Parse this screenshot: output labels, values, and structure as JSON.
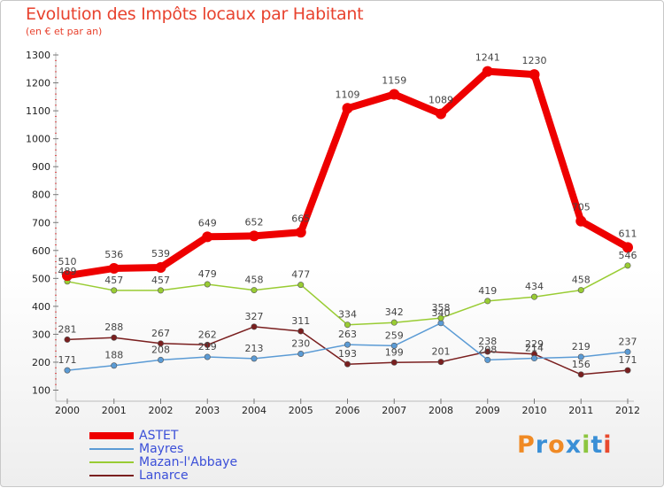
{
  "title": "Evolution des Impôts locaux par Habitant",
  "subtitle": "(en € et par an)",
  "logo": "Proxiti",
  "chart_data": {
    "type": "line",
    "title": "Evolution des Impôts locaux par Habitant",
    "subtitle": "(en € et par an)",
    "x": [
      "2000",
      "2001",
      "2002",
      "2003",
      "2004",
      "2005",
      "2006",
      "2007",
      "2008",
      "2009",
      "2010",
      "2011",
      "2012"
    ],
    "ylim": [
      100,
      1300
    ],
    "yticks": [
      100,
      200,
      300,
      400,
      500,
      600,
      700,
      800,
      900,
      1000,
      1100,
      1200,
      1300
    ],
    "grid": false,
    "legend_position": "bottom-left",
    "series": [
      {
        "name": "ASTET",
        "color": "#ee0000",
        "values": [
          510,
          536,
          539,
          649,
          652,
          665,
          1109,
          1159,
          1089,
          1241,
          1230,
          705,
          611
        ]
      },
      {
        "name": "Mayres",
        "color": "#5b9bd5",
        "values": [
          171,
          188,
          208,
          219,
          213,
          230,
          263,
          259,
          340,
          208,
          214,
          219,
          237
        ]
      },
      {
        "name": "Mazan-l'Abbaye",
        "color": "#99cc33",
        "values": [
          489,
          457,
          457,
          479,
          458,
          477,
          334,
          342,
          358,
          419,
          434,
          458,
          546
        ]
      },
      {
        "name": "Lanarce",
        "color": "#7a1f1f",
        "values": [
          281,
          288,
          267,
          262,
          327,
          311,
          193,
          199,
          201,
          238,
          229,
          156,
          171
        ]
      }
    ]
  }
}
